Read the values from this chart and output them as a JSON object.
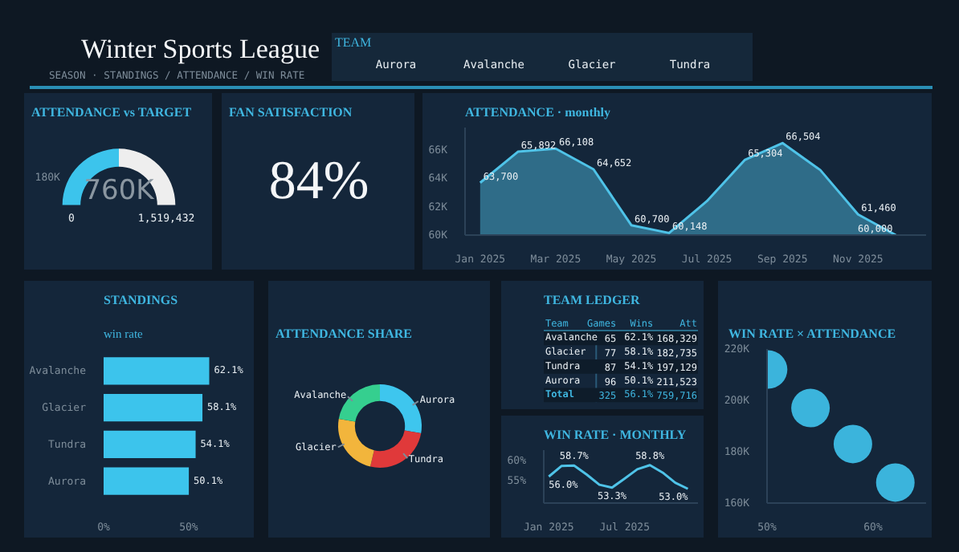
{
  "chart_data": [
    {
      "type": "other",
      "title": "Winter Sports League",
      "subtitle": "SEASON  ·  STANDINGS / ATTENDANCE / WIN RATE",
      "legend_title": "TEAM",
      "categories": [
        "Aurora",
        "Avalanche",
        "Glacier",
        "Tundra"
      ]
    },
    {
      "type": "donut",
      "title": "ATTENDANCE vs TARGET",
      "categories": [
        null,
        null
      ],
      "values": [
        50,
        50
      ],
      "colors": [
        "#3cc4ec",
        "#eeeeee"
      ],
      "annotations": [
        "760K",
        "0",
        "1,519,432",
        "180K"
      ]
    },
    {
      "type": "other",
      "title": "FAN SATISFACTION",
      "annotations": [
        "84%"
      ]
    },
    {
      "type": "area",
      "title": "ATTENDANCE · monthly",
      "categories": [
        "Jan 2025",
        null,
        "Mar 2025",
        null,
        "May 2025",
        null,
        "Jul 2025",
        null,
        "Sep 2025",
        null,
        "Nov 2025",
        null
      ],
      "values": [
        63700,
        65892,
        66108,
        64652,
        60700,
        60148,
        62400,
        65304,
        66504,
        64600,
        61460,
        60000
      ],
      "value_labels": [
        "63,700",
        "65,892",
        "66,108",
        "64,652",
        "60,700",
        "60,148",
        null,
        "65,304",
        "66,504",
        null,
        "61,460",
        "60,000"
      ],
      "color": "#4fc3e8",
      "ylim": [
        60000,
        67600
      ],
      "yticks": [
        {
          "value": 60000,
          "label": "60K"
        },
        {
          "value": 62000,
          "label": "62K"
        },
        {
          "value": 64000,
          "label": "64K"
        },
        {
          "value": 66000,
          "label": "66K"
        }
      ]
    },
    {
      "type": "bar",
      "orientation": "horizontal",
      "title": "STANDINGS",
      "subtitle": "win rate",
      "categories": [
        "Avalanche",
        "Glacier",
        "Tundra",
        "Aurora"
      ],
      "values": [
        62.1,
        58.1,
        54.1,
        50.1
      ],
      "value_labels": [
        "62.1%",
        "58.1%",
        "54.1%",
        "50.1%"
      ],
      "color": "#3cc4ec",
      "xlim": [
        0,
        85
      ],
      "xticks": [
        {
          "value": 0,
          "label": "0%"
        },
        {
          "value": 50,
          "label": "50%"
        }
      ]
    },
    {
      "type": "donut",
      "title": "ATTENDANCE SHARE",
      "categories": [
        "Aurora",
        "Tundra",
        "Glacier",
        "Avalanche"
      ],
      "values": [
        27.8,
        25.9,
        24.1,
        22.2
      ],
      "colors": [
        "#3ec6ee",
        "#e0393a",
        "#f2b53c",
        "#35cf8f"
      ]
    },
    {
      "type": "other",
      "title": "TEAM LEDGER",
      "categories": [
        "Team",
        "Games",
        "Wins",
        "Att"
      ],
      "y_categories": [
        "Avalanche",
        "Glacier",
        "Tundra",
        "Aurora",
        "Total"
      ],
      "cell_labels": [
        [
          "65",
          "62.1%",
          "168,329"
        ],
        [
          "77",
          "58.1%",
          "182,735"
        ],
        [
          "87",
          "54.1%",
          "197,129"
        ],
        [
          "96",
          "50.1%",
          "211,523"
        ],
        [
          "325",
          "56.1%",
          "759,716"
        ]
      ]
    },
    {
      "type": "line",
      "title": "WIN RATE · MONTHLY",
      "categories": [
        "Jan 2025",
        null,
        null,
        null,
        null,
        null,
        "Jul 2025",
        null,
        null,
        null,
        null,
        null
      ],
      "values": [
        56.0,
        58.6,
        58.7,
        56.5,
        54.0,
        53.3,
        55.5,
        57.8,
        58.8,
        57.0,
        54.5,
        53.0
      ],
      "value_labels": [
        "56.0%",
        null,
        "58.7%",
        null,
        null,
        "53.3%",
        null,
        null,
        "58.8%",
        null,
        null,
        "53.0%"
      ],
      "color": "#4fc3e8",
      "ylim": [
        49.5,
        62.5
      ],
      "yticks": [
        {
          "value": 55,
          "label": "55%"
        },
        {
          "value": 60,
          "label": "60%"
        }
      ]
    },
    {
      "type": "scatter",
      "title": "WIN RATE × ATTENDANCE",
      "x": [
        62.1,
        58.1,
        54.1,
        50.1
      ],
      "values": [
        168000,
        183000,
        197000,
        212000
      ],
      "color": "#3bb4dc",
      "marker": "circle",
      "xlim": [
        50,
        65
      ],
      "ylim": [
        160000,
        220000
      ],
      "xticks": [
        {
          "value": 50,
          "label": "50%"
        },
        {
          "value": 60,
          "label": "60%"
        }
      ],
      "yticks": [
        {
          "value": 160000,
          "label": "160K"
        },
        {
          "value": 180000,
          "label": "180K"
        },
        {
          "value": 200000,
          "label": "200K"
        },
        {
          "value": 220000,
          "label": "220K"
        }
      ]
    }
  ]
}
